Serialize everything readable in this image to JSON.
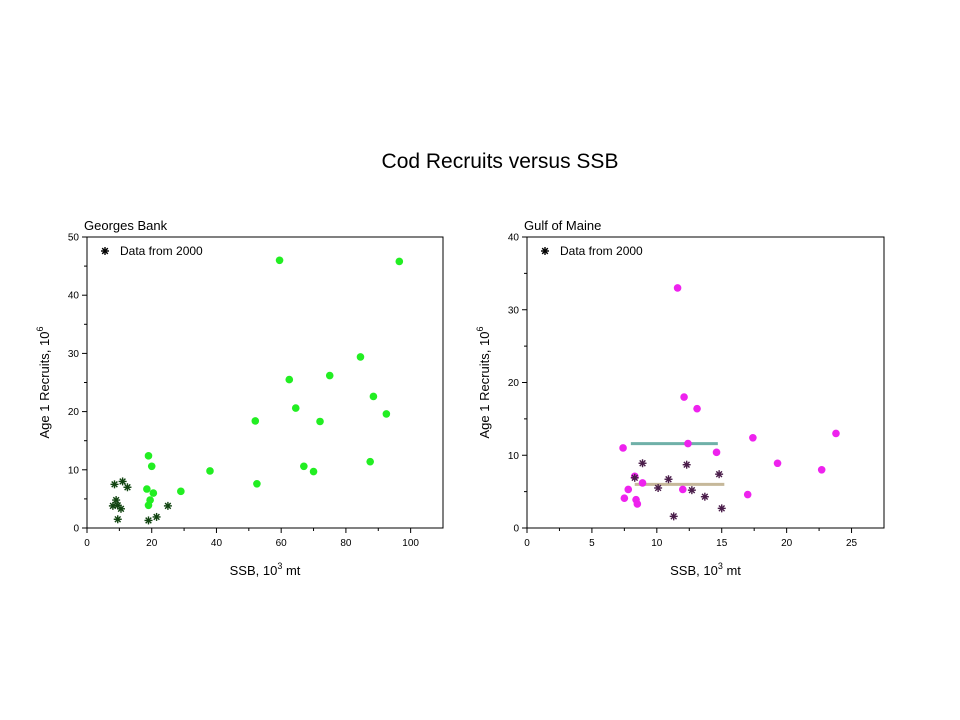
{
  "slide_title": "Cod Recruits versus SSB",
  "chart_data": [
    {
      "type": "scatter",
      "title": "Georges Bank",
      "xlabel": "SSB, 10",
      "xlabel_sup": "3",
      "xlabel_unit": " mt",
      "ylabel": "Age 1 Recruits, 10",
      "ylabel_sup": "6",
      "xlim": [
        0,
        110
      ],
      "ylim": [
        0,
        50
      ],
      "xticks": [
        0,
        20,
        40,
        60,
        80,
        100
      ],
      "yticks": [
        0,
        10,
        20,
        30,
        40,
        50
      ],
      "legend": {
        "label": "Data from 2000",
        "position": "top-left"
      },
      "grid": false,
      "series": [
        {
          "marker": "dot",
          "color": "#22ee22",
          "points": [
            [
              59.5,
              46.0
            ],
            [
              96.5,
              45.8
            ],
            [
              84.5,
              29.4
            ],
            [
              62.5,
              25.5
            ],
            [
              75,
              26.2
            ],
            [
              88.5,
              22.6
            ],
            [
              92.5,
              19.6
            ],
            [
              64.5,
              20.6
            ],
            [
              52,
              18.4
            ],
            [
              72,
              18.3
            ],
            [
              19,
              12.4
            ],
            [
              20,
              10.6
            ],
            [
              38,
              9.8
            ],
            [
              67,
              10.6
            ],
            [
              70,
              9.7
            ],
            [
              87.5,
              11.4
            ],
            [
              52.5,
              7.6
            ],
            [
              29,
              6.3
            ],
            [
              18.5,
              6.7
            ],
            [
              20.5,
              6.0
            ],
            [
              19.5,
              4.8
            ],
            [
              19,
              3.9
            ]
          ]
        },
        {
          "name": "Data from 2000",
          "marker": "asterisk",
          "color": "#114411",
          "points": [
            [
              8.5,
              7.5
            ],
            [
              11,
              8.0
            ],
            [
              12.5,
              7.0
            ],
            [
              9,
              4.8
            ],
            [
              8,
              3.8
            ],
            [
              9.5,
              3.9
            ],
            [
              10.5,
              3.3
            ],
            [
              9.5,
              1.5
            ],
            [
              19,
              1.3
            ],
            [
              21.5,
              1.9
            ],
            [
              25,
              3.8
            ]
          ]
        }
      ]
    },
    {
      "type": "scatter",
      "title": "Gulf of Maine",
      "xlabel": "SSB, 10",
      "xlabel_sup": "3",
      "xlabel_unit": " mt",
      "ylabel": "Age 1 Recruits, 10",
      "ylabel_sup": "6",
      "xlim": [
        0,
        27.5
      ],
      "ylim": [
        0,
        40
      ],
      "xticks": [
        0,
        5,
        10,
        15,
        20,
        25
      ],
      "yticks": [
        0,
        10,
        20,
        30,
        40
      ],
      "legend": {
        "label": "Data from 2000",
        "position": "top-left"
      },
      "grid": false,
      "series": [
        {
          "marker": "dot",
          "color": "#ee22ee",
          "points": [
            [
              11.6,
              33.0
            ],
            [
              12.1,
              18.0
            ],
            [
              13.1,
              16.4
            ],
            [
              23.8,
              13.0
            ],
            [
              17.4,
              12.4
            ],
            [
              7.4,
              11.0
            ],
            [
              12.4,
              11.6
            ],
            [
              14.6,
              10.4
            ],
            [
              19.3,
              8.9
            ],
            [
              22.7,
              8.0
            ],
            [
              8.3,
              7.1
            ],
            [
              8.9,
              6.2
            ],
            [
              7.8,
              5.3
            ],
            [
              12,
              5.3
            ],
            [
              17,
              4.6
            ],
            [
              7.5,
              4.1
            ],
            [
              8.4,
              3.9
            ],
            [
              8.5,
              3.3
            ]
          ]
        },
        {
          "name": "Data from 2000",
          "marker": "asterisk",
          "color": "#4a1d4a",
          "points": [
            [
              8.3,
              6.9
            ],
            [
              8.9,
              8.9
            ],
            [
              10.1,
              5.5
            ],
            [
              10.9,
              6.7
            ],
            [
              12.3,
              8.7
            ],
            [
              12.7,
              5.2
            ],
            [
              13.7,
              4.3
            ],
            [
              14.8,
              7.4
            ],
            [
              15,
              2.7
            ],
            [
              11.3,
              1.6
            ]
          ]
        }
      ],
      "reference_lines": [
        {
          "x": [
            8.0,
            14.7
          ],
          "y": 11.6,
          "color": "#6fb0a8"
        },
        {
          "x": [
            8.3,
            15.2
          ],
          "y": 6.0,
          "color": "#c6b89a"
        }
      ]
    }
  ]
}
